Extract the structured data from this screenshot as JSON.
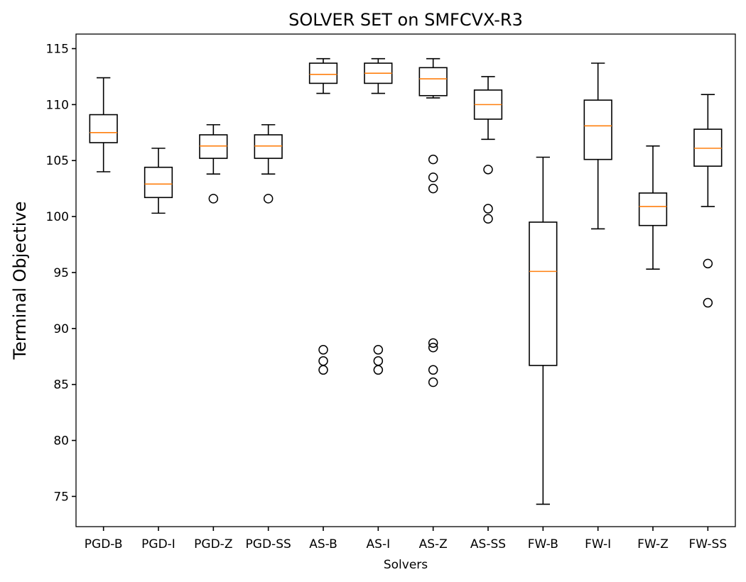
{
  "chart_data": {
    "type": "box",
    "title": "SOLVER SET on SMFCVX-R3",
    "xlabel": "Solvers",
    "ylabel": "Terminal Objective",
    "ylim": [
      72.3,
      116.3
    ],
    "yticks": [
      75,
      80,
      85,
      90,
      95,
      100,
      105,
      110,
      115
    ],
    "categories": [
      "PGD-B",
      "PGD-I",
      "PGD-Z",
      "PGD-SS",
      "AS-B",
      "AS-I",
      "AS-Z",
      "AS-SS",
      "FW-B",
      "FW-I",
      "FW-Z",
      "FW-SS"
    ],
    "boxes": [
      {
        "label": "PGD-B",
        "whisker_low": 104.0,
        "q1": 106.6,
        "median": 107.5,
        "q3": 109.1,
        "whisker_high": 112.4,
        "outliers": []
      },
      {
        "label": "PGD-I",
        "whisker_low": 100.3,
        "q1": 101.7,
        "median": 102.9,
        "q3": 104.4,
        "whisker_high": 106.1,
        "outliers": []
      },
      {
        "label": "PGD-Z",
        "whisker_low": 103.8,
        "q1": 105.2,
        "median": 106.3,
        "q3": 107.3,
        "whisker_high": 108.2,
        "outliers": [
          101.6
        ]
      },
      {
        "label": "PGD-SS",
        "whisker_low": 103.8,
        "q1": 105.2,
        "median": 106.3,
        "q3": 107.3,
        "whisker_high": 108.2,
        "outliers": [
          101.6
        ]
      },
      {
        "label": "AS-B",
        "whisker_low": 111.0,
        "q1": 111.9,
        "median": 112.7,
        "q3": 113.7,
        "whisker_high": 114.1,
        "outliers": [
          88.1,
          87.1,
          86.3
        ]
      },
      {
        "label": "AS-I",
        "whisker_low": 111.0,
        "q1": 111.9,
        "median": 112.8,
        "q3": 113.7,
        "whisker_high": 114.1,
        "outliers": [
          88.1,
          87.1,
          86.3
        ]
      },
      {
        "label": "AS-Z",
        "whisker_low": 110.6,
        "q1": 110.8,
        "median": 112.3,
        "q3": 113.3,
        "whisker_high": 114.1,
        "outliers": [
          105.1,
          103.5,
          102.5,
          88.7,
          88.3,
          86.3,
          85.2
        ]
      },
      {
        "label": "AS-SS",
        "whisker_low": 106.9,
        "q1": 108.7,
        "median": 110.0,
        "q3": 111.3,
        "whisker_high": 112.5,
        "outliers": [
          104.2,
          100.7,
          99.8
        ]
      },
      {
        "label": "FW-B",
        "whisker_low": 74.3,
        "q1": 86.7,
        "median": 95.1,
        "q3": 99.5,
        "whisker_high": 105.3,
        "outliers": []
      },
      {
        "label": "FW-I",
        "whisker_low": 98.9,
        "q1": 105.1,
        "median": 108.1,
        "q3": 110.4,
        "whisker_high": 113.7,
        "outliers": []
      },
      {
        "label": "FW-Z",
        "whisker_low": 95.3,
        "q1": 99.2,
        "median": 100.9,
        "q3": 102.1,
        "whisker_high": 106.3,
        "outliers": []
      },
      {
        "label": "FW-SS",
        "whisker_low": 100.9,
        "q1": 104.5,
        "median": 106.1,
        "q3": 107.8,
        "whisker_high": 110.9,
        "outliers": [
          95.8,
          92.3
        ]
      }
    ],
    "colors": {
      "box": "#000000",
      "median": "#ff7f0e",
      "background": "#ffffff"
    },
    "grid": false,
    "legend": "none"
  }
}
